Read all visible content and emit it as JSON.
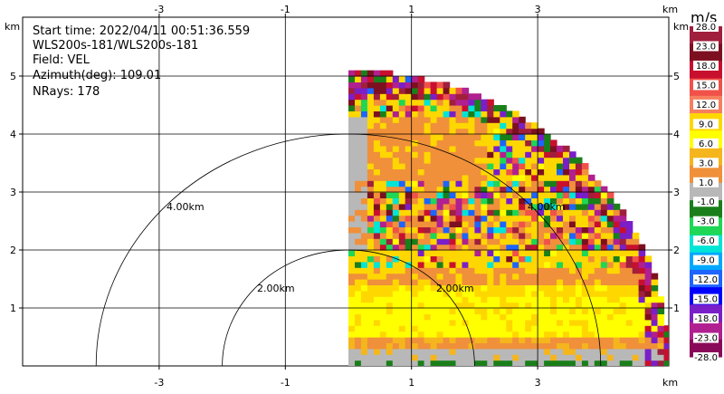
{
  "info": {
    "start_time": "Start time: 2022/04/11 00:51:36.559",
    "instrument": "WLS200s-181/WLS200s-181",
    "field": "Field: VEL",
    "azimuth": "Azimuth(deg): 109.01",
    "nrays": "NRays: 178"
  },
  "chart_data": {
    "type": "heatmap",
    "title": "",
    "projection": "RHI-style polar sector (range vs azimuth)",
    "x_ticks": [
      "-3",
      "-1",
      "1",
      "3"
    ],
    "x_unit": "km",
    "y_ticks": [
      "1",
      "2",
      "3",
      "4",
      "5"
    ],
    "y_unit": "km",
    "xlim": [
      -4.0,
      5.0
    ],
    "ylim": [
      0,
      5.4
    ],
    "sector": {
      "max_range_km": 5.1,
      "x_start_km": 0.0
    },
    "ring_labels": [
      "2.00km",
      "4.00km",
      "2.00km",
      "4.00km"
    ],
    "grid": true,
    "colorbar": {
      "unit": "m/s",
      "labels": [
        "28.0",
        "23.0",
        "18.0",
        "15.0",
        "12.0",
        "9.0",
        "6.0",
        "3.0",
        "1.0",
        "-1.0",
        "-3.0",
        "-6.0",
        "-9.0",
        "-12.0",
        "-15.0",
        "-18.0",
        "-23.0",
        "-28.0"
      ],
      "colors": [
        "#a01f3c",
        "#7c1020",
        "#c8102e",
        "#f0524a",
        "#f77f5f",
        "#ffd700",
        "#ffff00",
        "#f5b51c",
        "#f0903a",
        "#b8b8b8",
        "#1a7f1a",
        "#1fd655",
        "#00e5d5",
        "#00a8ff",
        "#1e64ff",
        "#0000ff",
        "#7a1fc8",
        "#b02090",
        "#8a0a5a"
      ]
    }
  }
}
